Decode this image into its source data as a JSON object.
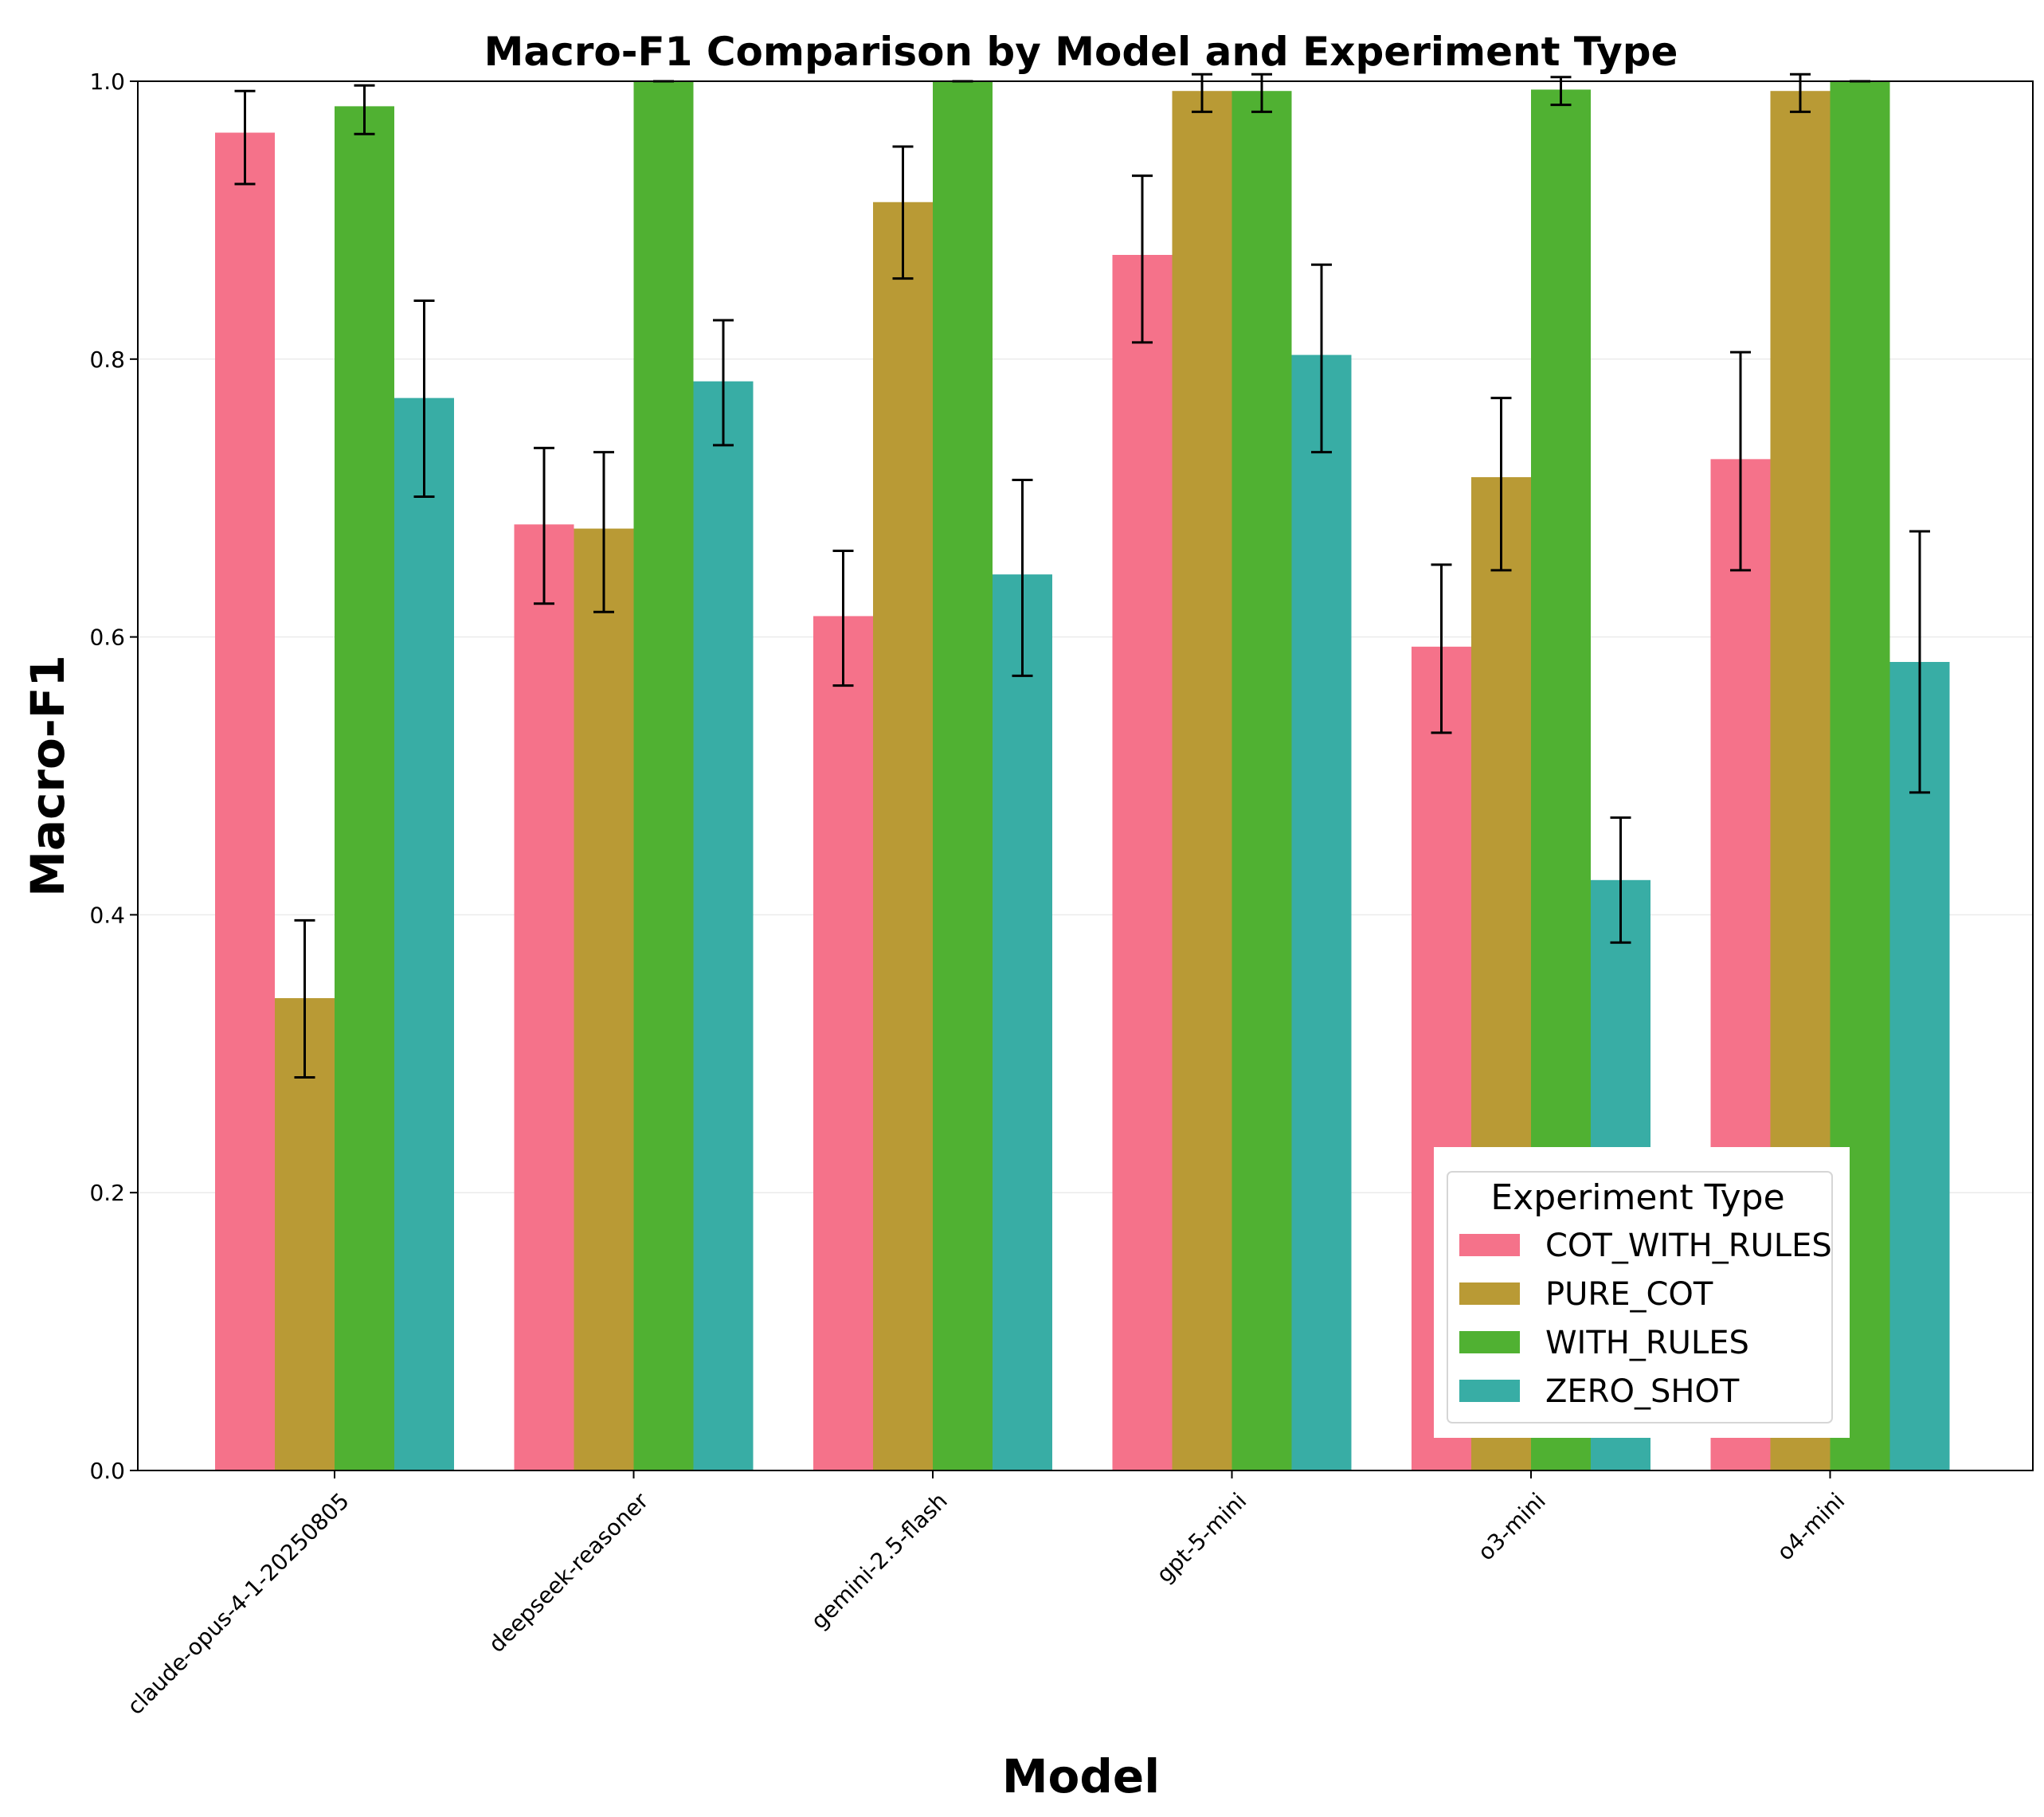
{
  "chart_data": {
    "type": "bar",
    "title": "Macro-F1 Comparison by Model and Experiment Type",
    "xlabel": "Model",
    "ylabel": "Macro-F1",
    "ylim": [
      0,
      1.0
    ],
    "yticks": [
      "0.0",
      "0.2",
      "0.4",
      "0.6",
      "0.8",
      "1.0"
    ],
    "grid": "horizontal",
    "legend_title": "Experiment Type",
    "legend_position": "lower-right",
    "categories": [
      "claude-opus-4-1-20250805",
      "deepseek-reasoner",
      "gemini-2.5-flash",
      "gpt-5-mini",
      "o3-mini",
      "o4-mini"
    ],
    "series": [
      {
        "name": "COT_WITH_RULES",
        "color": "#f5728a",
        "values": [
          0.963,
          0.681,
          0.615,
          0.875,
          0.593,
          0.728
        ],
        "err_low": [
          0.926,
          0.624,
          0.565,
          0.812,
          0.531,
          0.648
        ],
        "err_high": [
          0.993,
          0.736,
          0.662,
          0.932,
          0.652,
          0.805
        ]
      },
      {
        "name": "PURE_COT",
        "color": "#b99a35",
        "values": [
          0.34,
          0.678,
          0.913,
          0.993,
          0.715,
          0.993
        ],
        "err_low": [
          0.283,
          0.618,
          0.858,
          0.978,
          0.648,
          0.978
        ],
        "err_high": [
          0.396,
          0.733,
          0.953,
          1.005,
          0.772,
          1.005
        ]
      },
      {
        "name": "WITH_RULES",
        "color": "#50b132",
        "values": [
          0.982,
          1.0,
          1.0,
          0.993,
          0.994,
          1.0
        ],
        "err_low": [
          0.962,
          1.0,
          1.0,
          0.978,
          0.983,
          1.0
        ],
        "err_high": [
          0.997,
          1.0,
          1.0,
          1.005,
          1.003,
          1.0
        ]
      },
      {
        "name": "ZERO_SHOT",
        "color": "#38ada5",
        "values": [
          0.772,
          0.784,
          0.645,
          0.803,
          0.425,
          0.582
        ],
        "err_low": [
          0.701,
          0.738,
          0.572,
          0.733,
          0.38,
          0.488
        ],
        "err_high": [
          0.842,
          0.828,
          0.713,
          0.868,
          0.47,
          0.676
        ]
      }
    ]
  }
}
